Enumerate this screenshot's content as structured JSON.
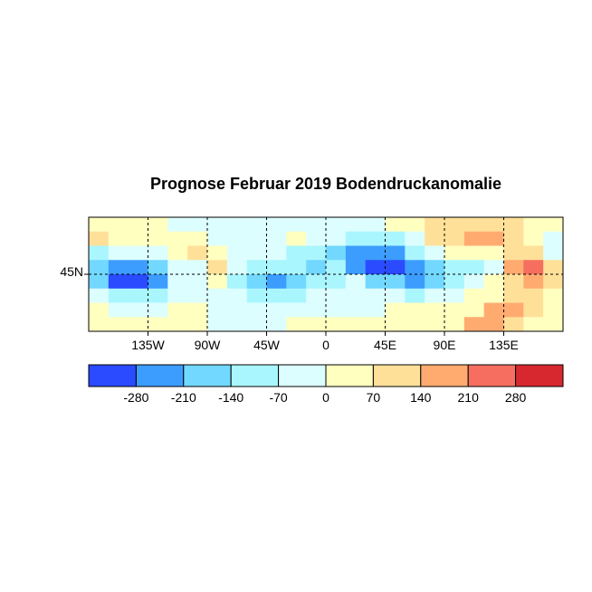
{
  "title": "Prognose Februar 2019 Bodendruckanomalie",
  "chart_data": {
    "type": "heatmap",
    "title": "Prognose Februar 2019 Bodendruckanomalie",
    "x_range": [
      -180,
      180
    ],
    "x_ticks": [
      {
        "value": -135,
        "label": "135W"
      },
      {
        "value": -90,
        "label": "90W"
      },
      {
        "value": -45,
        "label": "45W"
      },
      {
        "value": 0,
        "label": "0"
      },
      {
        "value": 45,
        "label": "45E"
      },
      {
        "value": 90,
        "label": "90E"
      },
      {
        "value": 135,
        "label": "135E"
      }
    ],
    "y_ticks": [
      {
        "value": 45,
        "label": "45N"
      }
    ],
    "grid": "dashed",
    "cell_lon_step": 15,
    "values": [
      [
        35,
        35,
        35,
        35,
        -35,
        -35,
        -35,
        -35,
        -35,
        -35,
        -35,
        -35,
        -35,
        -35,
        -35,
        35,
        35,
        105,
        105,
        105,
        105,
        105,
        35,
        35
      ],
      [
        105,
        35,
        35,
        35,
        35,
        35,
        -35,
        -35,
        -35,
        -35,
        35,
        -35,
        -35,
        -105,
        -105,
        -105,
        -35,
        105,
        105,
        175,
        175,
        105,
        35,
        -35
      ],
      [
        -105,
        -35,
        -35,
        -35,
        35,
        105,
        35,
        -35,
        -35,
        -35,
        -105,
        -105,
        -175,
        -245,
        -245,
        -245,
        -105,
        -35,
        35,
        35,
        35,
        105,
        105,
        -35
      ],
      [
        -175,
        -245,
        -245,
        -175,
        -35,
        -35,
        105,
        -35,
        -105,
        -105,
        -105,
        -175,
        -105,
        -245,
        -300,
        -300,
        -245,
        -175,
        -105,
        -105,
        -35,
        175,
        245,
        105
      ],
      [
        -175,
        -300,
        -300,
        -245,
        -35,
        -35,
        35,
        -105,
        -175,
        -245,
        -175,
        -105,
        -105,
        -35,
        -175,
        -175,
        -245,
        -175,
        -105,
        -35,
        35,
        105,
        175,
        105
      ],
      [
        -35,
        -105,
        -105,
        -105,
        -35,
        -35,
        -35,
        -35,
        -105,
        -105,
        -105,
        -35,
        -35,
        -35,
        -35,
        -35,
        -105,
        -35,
        -35,
        35,
        35,
        105,
        105,
        35
      ],
      [
        35,
        -35,
        -35,
        -35,
        35,
        35,
        -35,
        -35,
        -35,
        -35,
        -35,
        -35,
        -35,
        -35,
        -35,
        35,
        35,
        35,
        35,
        35,
        175,
        175,
        105,
        35
      ],
      [
        35,
        35,
        35,
        35,
        35,
        35,
        -35,
        -35,
        -35,
        -35,
        35,
        35,
        35,
        35,
        35,
        35,
        35,
        35,
        35,
        175,
        175,
        105,
        35,
        35
      ]
    ],
    "colorbar": {
      "breaks": [
        -280,
        -210,
        -140,
        -70,
        0,
        70,
        140,
        210,
        280
      ],
      "labels": [
        "-280",
        "-210",
        "-140",
        "-70",
        "0",
        "70",
        "140",
        "210",
        "280"
      ],
      "colors": [
        "#2a4bff",
        "#3d9dff",
        "#72d8ff",
        "#aaf6ff",
        "#ddfeff",
        "#ffffc0",
        "#ffe099",
        "#ffab70",
        "#f56e5f",
        "#d8282f"
      ]
    }
  }
}
